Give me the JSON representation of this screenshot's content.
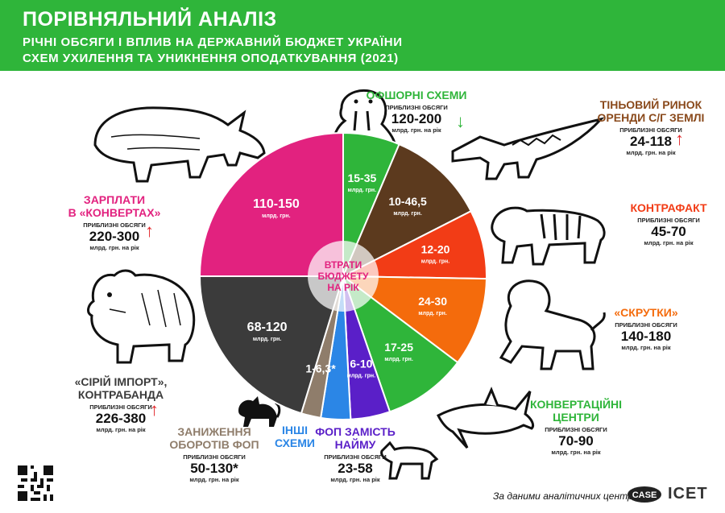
{
  "header": {
    "title": "ПОРІВНЯЛЬНИЙ АНАЛІЗ",
    "subtitle_line1": "РІЧНІ ОБСЯГИ І ВПЛИВ НА ДЕРЖАВНИЙ БЮДЖЕТ УКРАЇНИ",
    "subtitle_line2": "СХЕМ УХИЛЕННЯ ТА УНИКНЕННЯ ОПОДАТКУВАННЯ  (2021)"
  },
  "center_label": [
    "ВТРАТИ",
    "БЮДЖЕТУ",
    "НА РІК"
  ],
  "volume_caption": "ПРИБЛИЗНІ ОБСЯГИ",
  "volume_unit": "млрд. грн. на рік",
  "slice_unit": "млрд. грн.",
  "colors": {
    "header": "#2fb53a",
    "pink": "#e2227f",
    "green": "#2fb53a",
    "brown": "#5c3a1e",
    "red_orange": "#f23c16",
    "orange": "#f46b0c",
    "purple": "#5a1fc8",
    "blue": "#2b86e6",
    "tan": "#8f7d6b",
    "dark_gray": "#3b3b3b",
    "arrow_up": "#e2262a",
    "arrow_down": "#2fb53a"
  },
  "chart_data": {
    "type": "pie",
    "title": "ВТРАТИ БЮДЖЕТУ НА РІК",
    "units": "млрд. грн.",
    "slices": [
      {
        "label": "15-35",
        "low": 15,
        "high": 35,
        "color": "#2fb53a",
        "scheme": "ОФШОРНІ СХЕМИ"
      },
      {
        "label": "10-46,5",
        "low": 10,
        "high": 46.5,
        "color": "#5c3a1e",
        "scheme": "ТІНЬОВИЙ РИНОК ОРЕНДИ С/Г ЗЕМЛІ"
      },
      {
        "label": "12-20",
        "low": 12,
        "high": 20,
        "color": "#f23c16",
        "scheme": "КОНТРАФАКТ"
      },
      {
        "label": "24-30",
        "low": 24,
        "high": 30,
        "color": "#f46b0c",
        "scheme": "«СКРУТКИ»"
      },
      {
        "label": "17-25",
        "low": 17,
        "high": 25,
        "color": "#2fb53a",
        "scheme": "КОНВЕРТАЦІЙНІ ЦЕНТРИ"
      },
      {
        "label": "6-10",
        "low": 6,
        "high": 10,
        "color": "#5a1fc8",
        "scheme": "ФОП ЗАМІСТЬ НАЙМУ"
      },
      {
        "label": "",
        "low": 0,
        "high": 0,
        "color": "#2b86e6",
        "scheme": "ІНШІ СХЕМИ"
      },
      {
        "label": "1-6,3",
        "low": 1,
        "high": 6.3,
        "color": "#8f7d6b",
        "scheme": "ЗАНИЖЕННЯ ОБОРОТІВ ФОП",
        "asterisk": "*"
      },
      {
        "label": "68-120",
        "low": 68,
        "high": 120,
        "color": "#3b3b3b",
        "scheme": "«СІРИЙ ІМПОРТ», КОНТРАБАНДА"
      },
      {
        "label": "110-150",
        "low": 110,
        "high": 150,
        "color": "#e2227f",
        "scheme": "ЗАРПЛАТИ В «КОНВЕРТАХ»"
      }
    ]
  },
  "callouts": [
    {
      "id": "offshore",
      "name": [
        "ОФШОРНІ СХЕМИ"
      ],
      "range": "120-200",
      "color": "#2fb53a",
      "arrow": "down"
    },
    {
      "id": "land",
      "name": [
        "ТІНЬОВИЙ РИНОК",
        "ОРЕНДИ С/Г ЗЕМЛІ"
      ],
      "range": "24-118",
      "color": "#8a4a1c",
      "arrow": "up"
    },
    {
      "id": "counterfeit",
      "name": [
        "КОНТРАФАКТ"
      ],
      "range": "45-70",
      "color": "#f23c16",
      "arrow": ""
    },
    {
      "id": "skrutky",
      "name": [
        "«СКРУТКИ»"
      ],
      "range": "140-180",
      "color": "#f46b0c",
      "arrow": ""
    },
    {
      "id": "conversion",
      "name": [
        "КОНВЕРТАЦІЙНІ",
        "ЦЕНТРИ"
      ],
      "range": "70-90",
      "color": "#2fb53a",
      "arrow": ""
    },
    {
      "id": "fop",
      "name": [
        "ФОП ЗАМІСТЬ",
        "НАЙМУ"
      ],
      "range": "23-58",
      "color": "#5a1fc8",
      "arrow": ""
    },
    {
      "id": "other",
      "name": [
        "ІНШІ",
        "СХЕМИ"
      ],
      "range": "",
      "color": "#2b86e6",
      "arrow": ""
    },
    {
      "id": "underreport",
      "name": [
        "ЗАНИЖЕННЯ",
        "ОБОРОТІВ ФОП"
      ],
      "range": "50-130",
      "asterisk": "*",
      "color": "#8f7d6b",
      "arrow": ""
    },
    {
      "id": "import",
      "name": [
        "«СІРІЙ ІМПОРТ»,",
        "КОНТРАБАНДА"
      ],
      "range": "226-380",
      "color": "#3b3b3b",
      "arrow": "up"
    },
    {
      "id": "envelope",
      "name": [
        "ЗАРПЛАТИ",
        "В «КОНВЕРТАХ»"
      ],
      "range": "220-300",
      "color": "#e2227f",
      "arrow": "up"
    }
  ],
  "footer": {
    "source": "За даними аналітичних центрів",
    "logo_case": "CASE",
    "logo_icet": "ICET"
  },
  "icons": [
    "rhino-icon",
    "walrus-icon",
    "crocodile-icon",
    "tiger-icon",
    "lion-icon",
    "shark-icon",
    "wolf-icon",
    "cat-icon",
    "bear-icon",
    "qr-code-icon",
    "arrow-up-icon",
    "arrow-down-icon"
  ]
}
